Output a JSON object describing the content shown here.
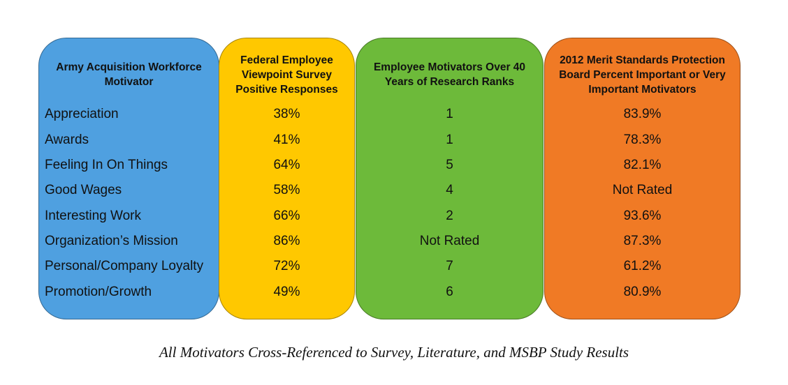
{
  "chart_data": {
    "type": "table",
    "title": "",
    "columns": [
      {
        "header": "Army Acquisition Workforce Motivator",
        "color": "#4FA0E0",
        "values": [
          "Appreciation",
          "Awards",
          "Feeling In On Things",
          "Good Wages",
          "Interesting Work",
          "Organization’s Mission",
          "Personal/Company Loyalty",
          "Promotion/Growth"
        ]
      },
      {
        "header": "Federal Employee Viewpoint Survey Positive Responses",
        "color": "#FFC800",
        "values": [
          "38%",
          "41%",
          "64%",
          "58%",
          "66%",
          "86%",
          "72%",
          "49%"
        ]
      },
      {
        "header": "Employee Motivators Over 40 Years of Research Ranks",
        "color": "#6DBA3A",
        "values": [
          "1",
          "1",
          "5",
          "4",
          "2",
          "Not Rated",
          "7",
          "6"
        ]
      },
      {
        "header": "2012 Merit Standards Protection Board Percent Important or Very Important Motivators",
        "color": "#F07A25",
        "values": [
          "83.9%",
          "78.3%",
          "82.1%",
          "Not Rated",
          "93.6%",
          "87.3%",
          "61.2%",
          "80.9%"
        ]
      }
    ]
  },
  "caption": "All Motivators Cross-Referenced to Survey, Literature, and MSBP Study Results"
}
